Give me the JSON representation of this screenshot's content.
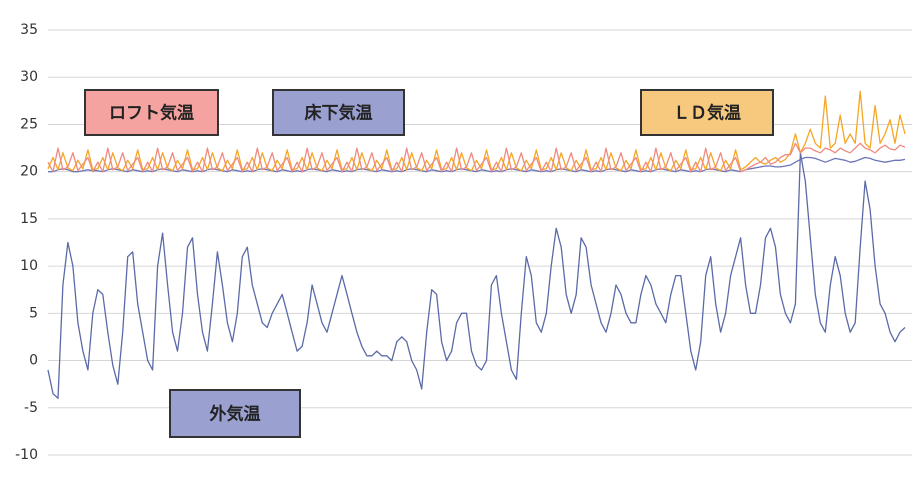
{
  "chart_data": {
    "type": "line",
    "ylim": [
      -10,
      35
    ],
    "yticks": [
      -10,
      -5,
      0,
      5,
      10,
      15,
      20,
      25,
      30,
      35
    ],
    "grid": true,
    "series": [
      {
        "name": "外気温",
        "color": "#5b6aa8",
        "values": [
          -1,
          -3.5,
          -4,
          8,
          12.5,
          10,
          4,
          1,
          -1,
          5,
          7.5,
          7,
          3,
          -0.5,
          -2.5,
          3,
          11,
          11.5,
          6,
          3,
          0,
          -1,
          10,
          13.5,
          8,
          3,
          1,
          5,
          12,
          13,
          7,
          3,
          1,
          6,
          11.5,
          8,
          4,
          2,
          5,
          11,
          12,
          8,
          6,
          4,
          3.5,
          5,
          6,
          7,
          5,
          3,
          1,
          1.5,
          4,
          8,
          6,
          4,
          3,
          5,
          7,
          9,
          7,
          5,
          3,
          1.5,
          0.5,
          0.5,
          1,
          0.5,
          0.5,
          0,
          2,
          2.5,
          2,
          0,
          -1,
          -3,
          3,
          7.5,
          7,
          2,
          0,
          1,
          4,
          5,
          5,
          1,
          -0.5,
          -1,
          0,
          8,
          9,
          5,
          2,
          -1,
          -2,
          5,
          11,
          9,
          4,
          3,
          5,
          10,
          14,
          12,
          7,
          5,
          7,
          13,
          12,
          8,
          6,
          4,
          3,
          5,
          8,
          7,
          5,
          4,
          4,
          7,
          9,
          8,
          6,
          5,
          4,
          7,
          9,
          9,
          5,
          1,
          -1,
          2,
          9,
          11,
          6,
          3,
          5,
          9,
          11,
          13,
          8,
          5,
          5,
          8,
          13,
          14,
          12,
          7,
          5,
          4,
          6,
          22,
          19,
          13,
          7,
          4,
          3,
          8,
          11,
          9,
          5,
          3,
          4,
          12,
          19,
          16,
          10,
          6,
          5,
          3,
          2,
          3,
          3.5
        ]
      },
      {
        "name": "床下気温",
        "color": "#6c74b8",
        "values": [
          20,
          20,
          20.2,
          20.3,
          20.2,
          20,
          20,
          20.1,
          20.2,
          20.1,
          20.1,
          20,
          20.2,
          20.3,
          20.2,
          20.1,
          20,
          20.2,
          20.1,
          20,
          20.1,
          20,
          20.2,
          20.3,
          20.2,
          20.1,
          20,
          20.2,
          20.1,
          20,
          20.1,
          20,
          20.2,
          20.3,
          20.2,
          20.1,
          20,
          20.2,
          20.1,
          20,
          20.1,
          20,
          20.2,
          20.3,
          20.2,
          20.1,
          20,
          20.2,
          20.1,
          20,
          20.1,
          20,
          20.2,
          20.3,
          20.2,
          20.1,
          20,
          20.2,
          20.1,
          20,
          20.1,
          20,
          20.2,
          20.3,
          20.2,
          20.1,
          20,
          20.2,
          20.1,
          20,
          20.1,
          20,
          20.2,
          20.3,
          20.2,
          20.1,
          20,
          20.2,
          20.1,
          20,
          20.1,
          20,
          20.2,
          20.3,
          20.2,
          20.1,
          20,
          20.2,
          20.1,
          20,
          20.1,
          20,
          20.2,
          20.3,
          20.2,
          20.1,
          20,
          20.2,
          20.1,
          20,
          20.1,
          20,
          20.2,
          20.3,
          20.2,
          20.1,
          20,
          20.2,
          20.1,
          20,
          20.1,
          20,
          20.2,
          20.3,
          20.2,
          20.1,
          20,
          20.2,
          20.1,
          20,
          20.1,
          20,
          20.2,
          20.3,
          20.2,
          20.1,
          20,
          20.2,
          20.1,
          20,
          20.1,
          20,
          20.2,
          20.3,
          20.2,
          20.1,
          20,
          20.2,
          20.1,
          20,
          20.2,
          20.3,
          20.4,
          20.5,
          20.6,
          20.6,
          20.5,
          20.5,
          20.6,
          20.7,
          21,
          21.3,
          21.5,
          21.5,
          21.4,
          21.2,
          21,
          21.2,
          21.4,
          21.3,
          21.2,
          21,
          21.1,
          21.3,
          21.5,
          21.4,
          21.2,
          21.1,
          21,
          21.1,
          21.2,
          21.2,
          21.3
        ]
      },
      {
        "name": "ＬＤ気温",
        "color": "#f5a623",
        "values": [
          20.3,
          21.5,
          20.2,
          22,
          20.4,
          20.1,
          21.2,
          20.3,
          22.3,
          20.2,
          20.3,
          21.5,
          20.2,
          22,
          20.4,
          20.1,
          21.2,
          20.3,
          22.3,
          20.2,
          20.3,
          21.5,
          20.2,
          22,
          20.4,
          20.1,
          21.2,
          20.3,
          22.3,
          20.2,
          20.3,
          21.5,
          20.2,
          22,
          20.4,
          20.1,
          21.2,
          20.3,
          22.3,
          20.2,
          20.3,
          21.5,
          20.2,
          22,
          20.4,
          20.1,
          21.2,
          20.3,
          22.3,
          20.2,
          20.3,
          21.5,
          20.2,
          22,
          20.4,
          20.1,
          21.2,
          20.3,
          22.3,
          20.2,
          20.3,
          21.5,
          20.2,
          22,
          20.4,
          20.1,
          21.2,
          20.3,
          22.3,
          20.2,
          20.3,
          21.5,
          20.2,
          22,
          20.4,
          20.1,
          21.2,
          20.3,
          22.3,
          20.2,
          20.3,
          21.5,
          20.2,
          22,
          20.4,
          20.1,
          21.2,
          20.3,
          22.3,
          20.2,
          20.3,
          21.5,
          20.2,
          22,
          20.4,
          20.1,
          21.2,
          20.3,
          22.3,
          20.2,
          20.3,
          21.5,
          20.2,
          22,
          20.4,
          20.1,
          21.2,
          20.3,
          22.3,
          20.2,
          20.3,
          21.5,
          20.2,
          22,
          20.4,
          20.1,
          21.2,
          20.3,
          22.3,
          20.2,
          20.3,
          21.5,
          20.2,
          22,
          20.4,
          20.1,
          21.2,
          20.3,
          22.3,
          20.2,
          20.3,
          21.5,
          20.2,
          22,
          20.4,
          20.1,
          21.2,
          20.3,
          22.3,
          20.2,
          20.5,
          21,
          21.5,
          21,
          20.8,
          21.2,
          21.5,
          21,
          21.3,
          22,
          24,
          22,
          23,
          24.5,
          23,
          22.5,
          28,
          22.5,
          23,
          26,
          23,
          24,
          23,
          28.5,
          23,
          22.5,
          27,
          23,
          24,
          25.5,
          23,
          26,
          24
        ]
      },
      {
        "name": "ロフト気温",
        "color": "#ef8a80",
        "values": [
          21,
          20,
          22.5,
          20.2,
          20.5,
          22,
          20.1,
          20.8,
          21.5,
          20,
          21,
          20,
          22.5,
          20.2,
          20.5,
          22,
          20.1,
          20.8,
          21.5,
          20,
          21,
          20,
          22.5,
          20.2,
          20.5,
          22,
          20.1,
          20.8,
          21.5,
          20,
          21,
          20,
          22.5,
          20.2,
          20.5,
          22,
          20.1,
          20.8,
          21.5,
          20,
          21,
          20,
          22.5,
          20.2,
          20.5,
          22,
          20.1,
          20.8,
          21.5,
          20,
          21,
          20,
          22.5,
          20.2,
          20.5,
          22,
          20.1,
          20.8,
          21.5,
          20,
          21,
          20,
          22.5,
          20.2,
          20.5,
          22,
          20.1,
          20.8,
          21.5,
          20,
          21,
          20,
          22.5,
          20.2,
          20.5,
          22,
          20.1,
          20.8,
          21.5,
          20,
          21,
          20,
          22.5,
          20.2,
          20.5,
          22,
          20.1,
          20.8,
          21.5,
          20,
          21,
          20,
          22.5,
          20.2,
          20.5,
          22,
          20.1,
          20.8,
          21.5,
          20,
          21,
          20,
          22.5,
          20.2,
          20.5,
          22,
          20.1,
          20.8,
          21.5,
          20,
          21,
          20,
          22.5,
          20.2,
          20.5,
          22,
          20.1,
          20.8,
          21.5,
          20,
          21,
          20,
          22.5,
          20.2,
          20.5,
          22,
          20.1,
          20.8,
          21.5,
          20,
          21,
          20,
          22.5,
          20.2,
          20.5,
          22,
          20.1,
          20.8,
          21.5,
          20,
          20.2,
          20.5,
          20.8,
          21,
          21.5,
          20.8,
          21,
          21.5,
          21.8,
          21.8,
          23,
          22,
          22.5,
          22.5,
          22.2,
          22,
          22.5,
          22.3,
          22,
          22.5,
          22.2,
          22,
          22.5,
          23,
          22.5,
          22.3,
          22,
          22.5,
          22.8,
          22.4,
          22.3,
          22.8,
          22.6
        ]
      }
    ]
  }
}
